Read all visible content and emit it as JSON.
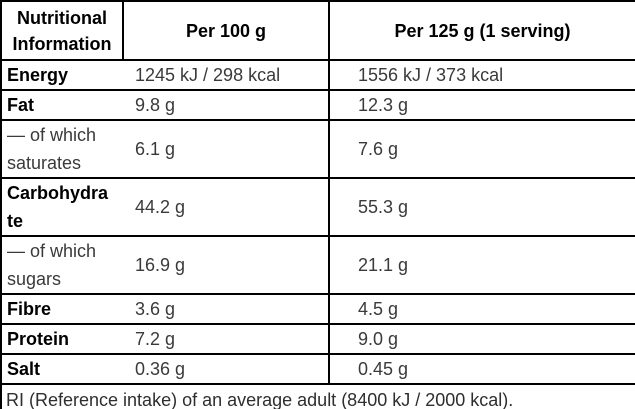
{
  "colors": {
    "border": "#000000",
    "heading_text": "#000000",
    "value_text": "#3a3a3a",
    "background": "#ffffff"
  },
  "table": {
    "header": {
      "col1": "Nutritional Information",
      "col2": "Per 100 g",
      "col3": "Per 125 g (1 serving)"
    },
    "rows": [
      {
        "label": "Energy",
        "per_100g": "1245 kJ / 298 kcal",
        "per_125g": "1556 kJ / 373 kcal"
      },
      {
        "label": "Fat",
        "per_100g": "9.8 g",
        "per_125g": "12.3 g"
      },
      {
        "label": "— of which saturates",
        "per_100g": "6.1 g",
        "per_125g": "7.6 g"
      },
      {
        "label": "Carbohydrate",
        "per_100g": "44.2 g",
        "per_125g": "55.3 g"
      },
      {
        "label": "— of which sugars",
        "per_100g": "16.9 g",
        "per_125g": "21.1 g"
      },
      {
        "label": "Fibre",
        "per_100g": "3.6 g",
        "per_125g": "4.5 g"
      },
      {
        "label": "Protein",
        "per_100g": "7.2 g",
        "per_125g": "9.0 g"
      },
      {
        "label": "Salt",
        "per_100g": "0.36 g",
        "per_125g": "0.45 g"
      }
    ],
    "footnote": "RI (Reference intake) of an average adult (8400 kJ / 2000 kcal)."
  }
}
